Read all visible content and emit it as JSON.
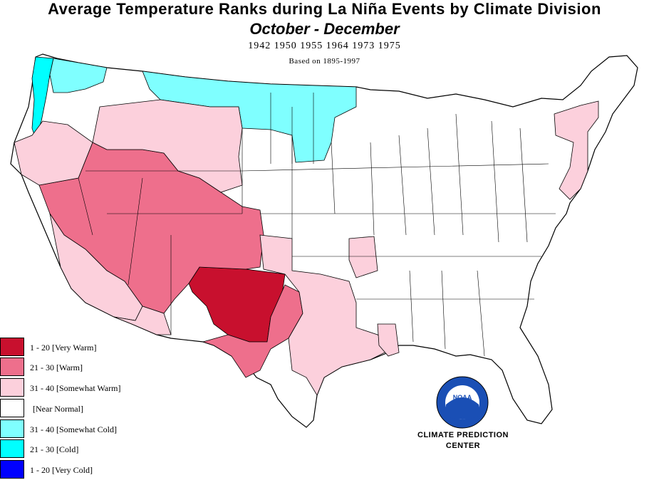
{
  "title": "Average Temperature Ranks during La  Niña Events by Climate Division",
  "subtitle": "October  -  December",
  "years_line": "1942 1950 1955 1964 1973 1975",
  "based_on": "Based on 1895-1997",
  "legend": [
    {
      "label": "1 - 20 [Very Warm]",
      "color": "#c8102e"
    },
    {
      "label": "21 - 30 [Warm]",
      "color": "#ee6f8c"
    },
    {
      "label": "31 - 40 [Somewhat Warm]",
      "color": "#fcd0dc"
    },
    {
      "label": "[Near Normal]",
      "color": "#ffffff"
    },
    {
      "label": "31 - 40 [Somewhat Cold]",
      "color": "#7fffff"
    },
    {
      "label": "21 - 30 [Cold]",
      "color": "#00ffff"
    },
    {
      "label": "1 - 20 [Very Cold]",
      "color": "#0000ff"
    }
  ],
  "logo": {
    "text": "NOAA"
  },
  "credit": {
    "line1": "CLIMATE PREDICTION",
    "line2": "CENTER"
  }
}
